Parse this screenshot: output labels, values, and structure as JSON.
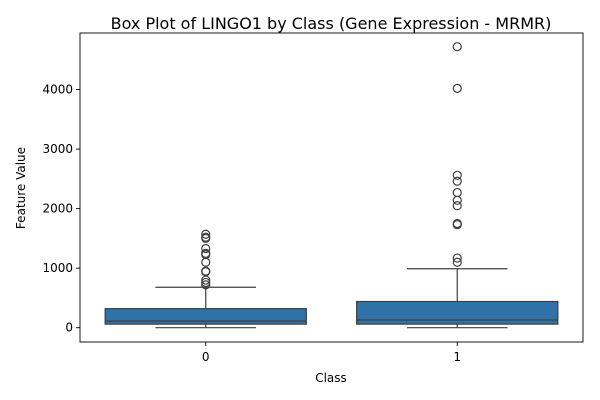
{
  "chart_data": {
    "type": "box",
    "title": "Box Plot of LINGO1 by Class (Gene Expression - MRMR)",
    "xlabel": "Class",
    "ylabel": "Feature Value",
    "categories": [
      "0",
      "1"
    ],
    "ylim": [
      -240,
      4950
    ],
    "yticks": [
      0,
      1000,
      2000,
      3000,
      4000
    ],
    "box_color": "#2f72a8",
    "boxes": [
      {
        "category": "0",
        "whisker_low": 0,
        "q1": 60,
        "median": 110,
        "q3": 320,
        "whisker_high": 680,
        "outliers": [
          720,
          760,
          800,
          940,
          950,
          1100,
          1230,
          1250,
          1330,
          1500,
          1520,
          1570
        ]
      },
      {
        "category": "1",
        "whisker_low": 0,
        "q1": 60,
        "median": 130,
        "q3": 440,
        "whisker_high": 990,
        "outliers": [
          1100,
          1170,
          1730,
          1750,
          2050,
          2140,
          2270,
          2460,
          2560,
          4020,
          4720
        ]
      }
    ]
  }
}
